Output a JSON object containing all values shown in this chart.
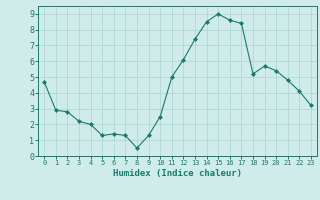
{
  "x": [
    0,
    1,
    2,
    3,
    4,
    5,
    6,
    7,
    8,
    9,
    10,
    11,
    12,
    13,
    14,
    15,
    16,
    17,
    18,
    19,
    20,
    21,
    22,
    23
  ],
  "y": [
    4.7,
    2.9,
    2.8,
    2.2,
    2.0,
    1.3,
    1.4,
    1.3,
    0.5,
    1.3,
    2.5,
    5.0,
    6.1,
    7.4,
    8.5,
    9.0,
    8.6,
    8.4,
    5.2,
    5.7,
    5.4,
    4.8,
    4.1,
    3.2
  ],
  "line_color": "#1a7a6e",
  "marker": "D",
  "marker_size": 2,
  "bg_color": "#d0ecea",
  "grid_color": "#a8d4d0",
  "xlabel": "Humidex (Indice chaleur)",
  "xlim": [
    -0.5,
    23.5
  ],
  "ylim": [
    0,
    9.5
  ],
  "yticks": [
    0,
    1,
    2,
    3,
    4,
    5,
    6,
    7,
    8,
    9
  ],
  "xticks": [
    0,
    1,
    2,
    3,
    4,
    5,
    6,
    7,
    8,
    9,
    10,
    11,
    12,
    13,
    14,
    15,
    16,
    17,
    18,
    19,
    20,
    21,
    22,
    23
  ]
}
